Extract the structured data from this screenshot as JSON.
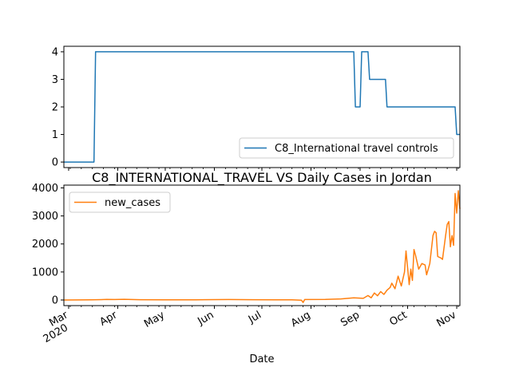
{
  "chart_data": [
    {
      "type": "line",
      "title": "",
      "xlabel": "",
      "ylabel": "",
      "xlim": [
        "2020-02-27",
        "2020-11-03"
      ],
      "ylim": [
        -0.2,
        4.2
      ],
      "yticks": [
        "0",
        "1",
        "2",
        "3",
        "4"
      ],
      "grid": false,
      "legend": "lower-right",
      "series": [
        {
          "name": "C8_International travel controls",
          "color": "#1f77b4",
          "points": [
            [
              "2020-02-27",
              0
            ],
            [
              "2020-03-17",
              0
            ],
            [
              "2020-03-18",
              4
            ],
            [
              "2020-08-28",
              4
            ],
            [
              "2020-08-29",
              2
            ],
            [
              "2020-09-01",
              2
            ],
            [
              "2020-09-02",
              4
            ],
            [
              "2020-09-06",
              4
            ],
            [
              "2020-09-07",
              3
            ],
            [
              "2020-09-17",
              3
            ],
            [
              "2020-09-18",
              2
            ],
            [
              "2020-10-31",
              2
            ],
            [
              "2020-11-01",
              1
            ],
            [
              "2020-11-03",
              1
            ]
          ]
        }
      ]
    },
    {
      "type": "line",
      "title": "C8_INTERNATIONAL_TRAVEL VS Daily Cases in Jordan",
      "xlabel": "Date",
      "ylabel": "",
      "xlim": [
        "2020-02-27",
        "2020-11-03"
      ],
      "ylim": [
        -200,
        4100
      ],
      "yticks": [
        "0",
        "1000",
        "2000",
        "3000",
        "4000"
      ],
      "xticks": [
        {
          "date": "2020-03-01",
          "label": "Mar",
          "sublabel": "2020"
        },
        {
          "date": "2020-04-01",
          "label": "Apr"
        },
        {
          "date": "2020-05-01",
          "label": "May"
        },
        {
          "date": "2020-06-01",
          "label": "Jun"
        },
        {
          "date": "2020-07-01",
          "label": "Jul"
        },
        {
          "date": "2020-08-01",
          "label": "Aug"
        },
        {
          "date": "2020-09-01",
          "label": "Sep"
        },
        {
          "date": "2020-10-01",
          "label": "Oct"
        },
        {
          "date": "2020-11-01",
          "label": "Nov"
        }
      ],
      "grid": false,
      "legend": "upper-left",
      "series": [
        {
          "name": "new_cases",
          "color": "#ff7f0e",
          "points": [
            [
              "2020-02-27",
              0
            ],
            [
              "2020-03-15",
              5
            ],
            [
              "2020-03-25",
              20
            ],
            [
              "2020-03-30",
              15
            ],
            [
              "2020-04-05",
              25
            ],
            [
              "2020-04-15",
              10
            ],
            [
              "2020-05-01",
              5
            ],
            [
              "2020-05-20",
              8
            ],
            [
              "2020-06-10",
              15
            ],
            [
              "2020-06-25",
              10
            ],
            [
              "2020-07-10",
              8
            ],
            [
              "2020-07-20",
              5
            ],
            [
              "2020-07-26",
              -10
            ],
            [
              "2020-07-27",
              -90
            ],
            [
              "2020-07-28",
              15
            ],
            [
              "2020-08-10",
              20
            ],
            [
              "2020-08-20",
              40
            ],
            [
              "2020-08-28",
              80
            ],
            [
              "2020-09-03",
              60
            ],
            [
              "2020-09-06",
              160
            ],
            [
              "2020-09-08",
              80
            ],
            [
              "2020-09-10",
              250
            ],
            [
              "2020-09-12",
              150
            ],
            [
              "2020-09-14",
              300
            ],
            [
              "2020-09-16",
              200
            ],
            [
              "2020-09-18",
              350
            ],
            [
              "2020-09-20",
              450
            ],
            [
              "2020-09-21",
              600
            ],
            [
              "2020-09-23",
              400
            ],
            [
              "2020-09-25",
              850
            ],
            [
              "2020-09-27",
              500
            ],
            [
              "2020-09-29",
              1000
            ],
            [
              "2020-09-30",
              1750
            ],
            [
              "2020-10-02",
              550
            ],
            [
              "2020-10-03",
              1100
            ],
            [
              "2020-10-04",
              700
            ],
            [
              "2020-10-05",
              1800
            ],
            [
              "2020-10-06",
              1600
            ],
            [
              "2020-10-08",
              1100
            ],
            [
              "2020-10-10",
              1300
            ],
            [
              "2020-10-12",
              1250
            ],
            [
              "2020-10-13",
              900
            ],
            [
              "2020-10-15",
              1300
            ],
            [
              "2020-10-17",
              2300
            ],
            [
              "2020-10-18",
              2450
            ],
            [
              "2020-10-19",
              2400
            ],
            [
              "2020-10-20",
              1550
            ],
            [
              "2020-10-22",
              1500
            ],
            [
              "2020-10-23",
              1450
            ],
            [
              "2020-10-25",
              2300
            ],
            [
              "2020-10-26",
              2700
            ],
            [
              "2020-10-27",
              2800
            ],
            [
              "2020-10-28",
              1900
            ],
            [
              "2020-10-29",
              2300
            ],
            [
              "2020-10-30",
              1950
            ],
            [
              "2020-10-31",
              3800
            ],
            [
              "2020-11-01",
              3100
            ],
            [
              "2020-11-02",
              3900
            ],
            [
              "2020-11-03",
              3250
            ]
          ]
        }
      ]
    }
  ]
}
